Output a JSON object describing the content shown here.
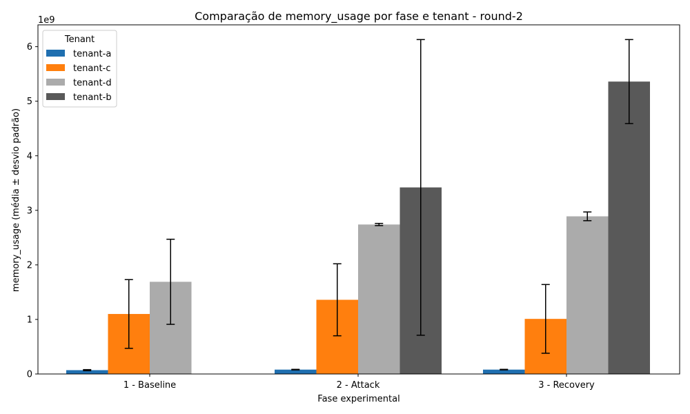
{
  "chart_data": {
    "type": "bar",
    "title": "Comparação de memory_usage por fase e tenant - round-2",
    "xlabel": "Fase experimental",
    "ylabel": "memory_usage (média ± desvio padrão)",
    "y_multiplier_label": "1e9",
    "ylim": [
      0,
      6.4
    ],
    "yticks": [
      0,
      1,
      2,
      3,
      4,
      5,
      6
    ],
    "categories": [
      "1 - Baseline",
      "2 - Attack",
      "3 - Recovery"
    ],
    "legend": {
      "title": "Tenant",
      "placement": "top-left"
    },
    "series": [
      {
        "name": "tenant-a",
        "color": "#1f6fb0",
        "values": [
          0.07,
          0.08,
          0.08
        ],
        "errors": [
          0.01,
          0.005,
          0.005
        ]
      },
      {
        "name": "tenant-c",
        "color": "#ff7f0e",
        "values": [
          1.1,
          1.36,
          1.01
        ],
        "errors": [
          0.63,
          0.66,
          0.63
        ]
      },
      {
        "name": "tenant-d",
        "color": "#ababab",
        "values": [
          1.69,
          2.74,
          2.89
        ],
        "errors": [
          0.78,
          0.02,
          0.08
        ]
      },
      {
        "name": "tenant-b",
        "color": "#595959",
        "values": [
          null,
          3.42,
          5.36
        ],
        "errors": [
          null,
          2.71,
          0.77
        ]
      }
    ],
    "grid": false
  }
}
